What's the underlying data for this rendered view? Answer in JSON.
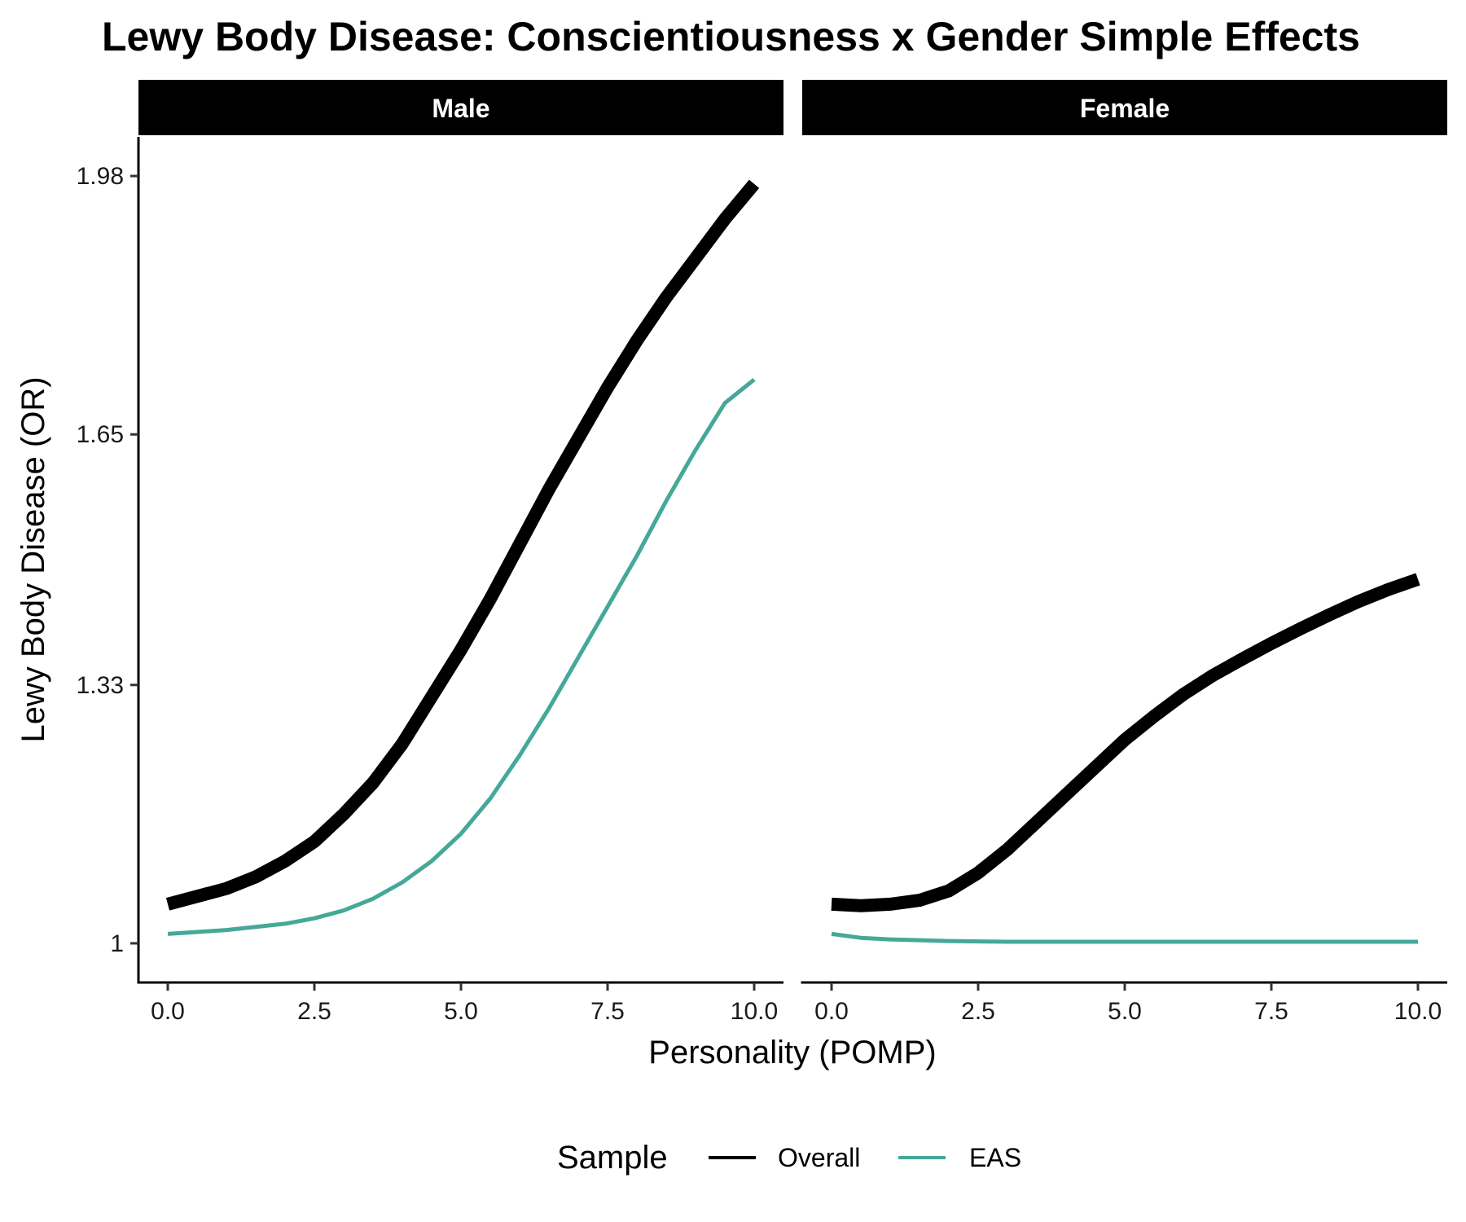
{
  "chart_data": {
    "type": "line",
    "title": "Lewy Body Disease: Conscientiousness x Gender Simple Effects",
    "xlabel": "Personality (POMP)",
    "ylabel": "Lewy Body Disease (OR)",
    "xlim": [
      -0.5,
      10.5
    ],
    "ylim": [
      0.95,
      2.03
    ],
    "x_ticks": [
      0.0,
      2.5,
      5.0,
      7.5,
      10.0
    ],
    "x_tick_labels": [
      "0.0",
      "2.5",
      "5.0",
      "7.5",
      "10.0"
    ],
    "y_ticks": [
      1.0,
      1.33,
      1.65,
      1.98
    ],
    "y_tick_labels": [
      "1",
      "1.33",
      "1.65",
      "1.98"
    ],
    "grid": false,
    "legend": {
      "title": "Sample",
      "position": "bottom"
    },
    "panels": [
      {
        "name": "Male",
        "series": [
          {
            "name": "Overall",
            "color": "#000000",
            "x": [
              0,
              1,
              1.5,
              2,
              2.5,
              3,
              3.5,
              4,
              4.5,
              5,
              5.5,
              6,
              6.5,
              7,
              7.5,
              8,
              8.5,
              9,
              9.5,
              10
            ],
            "y": [
              1.05,
              1.07,
              1.085,
              1.105,
              1.13,
              1.165,
              1.205,
              1.255,
              1.315,
              1.375,
              1.44,
              1.51,
              1.58,
              1.645,
              1.71,
              1.77,
              1.825,
              1.875,
              1.925,
              1.97
            ]
          },
          {
            "name": "EAS",
            "color": "#45A898",
            "x": [
              0,
              1,
              2,
              2.5,
              3,
              3.5,
              4,
              4.5,
              5,
              5.5,
              6,
              6.5,
              7,
              7.5,
              8,
              8.5,
              9,
              9.5,
              10
            ],
            "y": [
              1.012,
              1.017,
              1.025,
              1.032,
              1.042,
              1.057,
              1.078,
              1.105,
              1.14,
              1.185,
              1.24,
              1.3,
              1.365,
              1.43,
              1.495,
              1.565,
              1.63,
              1.69,
              1.72
            ]
          }
        ]
      },
      {
        "name": "Female",
        "series": [
          {
            "name": "Overall",
            "color": "#000000",
            "x": [
              0,
              0.5,
              1,
              1.5,
              2,
              2.5,
              3,
              3.5,
              4,
              4.5,
              5,
              5.5,
              6,
              6.5,
              7,
              7.5,
              8,
              8.5,
              9,
              9.5,
              10
            ],
            "y": [
              1.05,
              1.048,
              1.05,
              1.055,
              1.067,
              1.09,
              1.12,
              1.155,
              1.19,
              1.225,
              1.26,
              1.29,
              1.318,
              1.342,
              1.363,
              1.383,
              1.402,
              1.42,
              1.437,
              1.452,
              1.465
            ]
          },
          {
            "name": "EAS",
            "color": "#45A898",
            "x": [
              0,
              0.5,
              1,
              2,
              3,
              4,
              5,
              6,
              7,
              8,
              9,
              10
            ],
            "y": [
              1.012,
              1.007,
              1.005,
              1.003,
              1.002,
              1.002,
              1.002,
              1.002,
              1.002,
              1.002,
              1.002,
              1.002
            ]
          }
        ]
      }
    ]
  }
}
